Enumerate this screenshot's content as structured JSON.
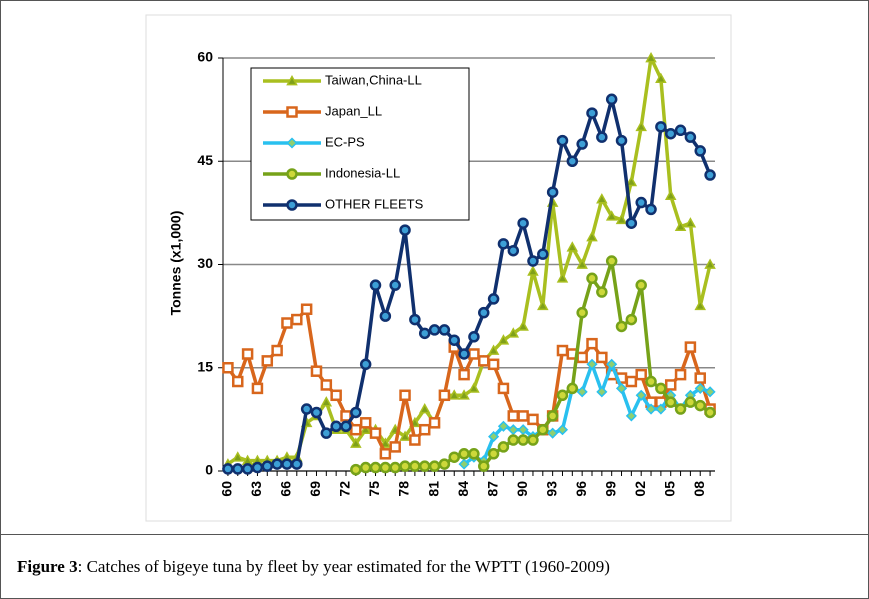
{
  "chart_data": {
    "type": "line",
    "ylabel": "Tonnes (x1,000)",
    "categories": [
      "60",
      null,
      null,
      "63",
      null,
      null,
      "66",
      null,
      null,
      "69",
      null,
      null,
      "72",
      null,
      null,
      "75",
      null,
      null,
      "78",
      null,
      null,
      "81",
      null,
      null,
      "84",
      null,
      null,
      "87",
      null,
      null,
      "90",
      null,
      null,
      "93",
      null,
      null,
      "96",
      null,
      null,
      "99",
      null,
      null,
      "02",
      null,
      null,
      "05",
      null,
      null,
      "08",
      null
    ],
    "ylim": [
      0,
      60
    ],
    "yticks": [
      0,
      15,
      30,
      45,
      60
    ],
    "grid": true,
    "legend": "upper left",
    "series": [
      {
        "name": "Taiwan,China-LL",
        "color": "#a9bf1f",
        "marker": "triangle",
        "marker_fill": "#7fa01a",
        "values": [
          1,
          2,
          1.5,
          1.5,
          1.5,
          1.5,
          2,
          2,
          7,
          8,
          10,
          6,
          6,
          4,
          6,
          6,
          4,
          6,
          5,
          7,
          9,
          7,
          11,
          11,
          11,
          12,
          16,
          17.5,
          19,
          20,
          21,
          29,
          24,
          39,
          28,
          32.5,
          30,
          34,
          39.5,
          37,
          36.5,
          42,
          50,
          60,
          57,
          40,
          35.5,
          36,
          24,
          30
        ]
      },
      {
        "name": "Japan_LL",
        "color": "#d8661c",
        "marker": "square",
        "marker_fill": "#d8661c",
        "values": [
          15,
          13,
          17,
          12,
          16,
          17.5,
          21.5,
          22,
          23.5,
          14.5,
          12.5,
          11,
          8,
          6,
          7,
          5.5,
          2.5,
          3.5,
          11,
          4.5,
          6,
          7,
          11,
          18,
          14,
          17,
          16,
          15.5,
          12,
          8,
          8,
          7.5,
          6,
          8,
          17.5,
          17,
          16.5,
          18.5,
          16.5,
          14,
          13.5,
          13,
          14,
          10,
          10,
          12.5,
          14,
          18,
          13.5,
          9
        ]
      },
      {
        "name": "EC-PS",
        "color": "#29c0ef",
        "marker": "diamond",
        "marker_fill": "#8fcf70",
        "values": [
          null,
          null,
          null,
          null,
          null,
          null,
          null,
          null,
          null,
          null,
          null,
          null,
          null,
          null,
          null,
          null,
          null,
          null,
          null,
          null,
          null,
          null,
          null,
          null,
          1,
          2,
          1.5,
          5,
          6.5,
          6,
          6,
          5,
          6,
          5.5,
          6,
          12,
          11.5,
          15.5,
          11.5,
          15.5,
          12,
          8,
          11,
          9,
          9,
          11,
          9,
          11,
          12,
          11.5
        ]
      },
      {
        "name": "Indonesia-LL",
        "color": "#76a219",
        "marker": "circle",
        "marker_fill": "#cdd83a",
        "values": [
          null,
          null,
          null,
          null,
          null,
          null,
          null,
          null,
          null,
          null,
          null,
          null,
          null,
          0.2,
          0.5,
          0.5,
          0.5,
          0.5,
          0.7,
          0.7,
          0.7,
          0.7,
          1,
          2,
          2.5,
          2.5,
          0.7,
          2.5,
          3.5,
          4.5,
          4.5,
          4.5,
          6,
          8,
          11,
          12,
          23,
          28,
          26,
          30.5,
          21,
          22,
          27,
          13,
          12,
          10,
          9,
          10,
          9.5,
          8.5
        ]
      },
      {
        "name": "OTHER FLEETS",
        "color": "#10306e",
        "marker": "circle",
        "marker_fill": "#3d9fd6",
        "values": [
          0.3,
          0.3,
          0.3,
          0.5,
          0.7,
          1,
          1,
          1,
          9,
          8.5,
          5.5,
          6.5,
          6.5,
          8.5,
          15.5,
          27,
          22.5,
          27,
          35,
          22,
          20,
          20.5,
          20.5,
          19,
          17,
          19.5,
          23,
          25,
          33,
          32,
          36,
          30.5,
          31.5,
          40.5,
          48,
          45,
          47.5,
          52,
          48.5,
          54,
          48,
          36,
          39,
          38,
          50,
          49,
          49.5,
          48.5,
          46.5,
          43
        ]
      }
    ]
  },
  "caption": {
    "label": "Figure 3",
    "text": ": Catches of bigeye tuna by fleet by year estimated for the WPTT (1960-2009)"
  }
}
